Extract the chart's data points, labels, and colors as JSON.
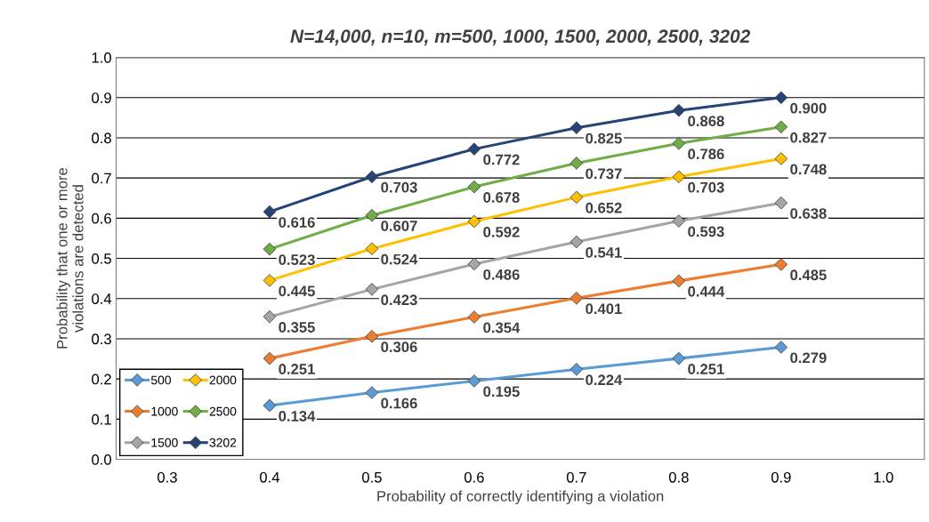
{
  "chart_data": {
    "type": "line",
    "title": "N=14,000, n=10, m=500, 1000, 1500, 2000, 2500, 3202",
    "xlabel": "Probability of correctly identifying a violation",
    "ylabel": "Probability that one or more\nviolations are detected",
    "x": [
      0.4,
      0.5,
      0.6,
      0.7,
      0.8,
      0.9
    ],
    "series": [
      {
        "name": "500",
        "color": "#5b9bd5",
        "values": [
          0.134,
          0.166,
          0.195,
          0.224,
          0.251,
          0.279
        ],
        "value_labels": [
          "0.134",
          "0.166",
          "0.195",
          "0.224",
          "0.251",
          "0.279"
        ]
      },
      {
        "name": "1000",
        "color": "#ed7d31",
        "values": [
          0.251,
          0.306,
          0.354,
          0.401,
          0.444,
          0.485
        ],
        "value_labels": [
          "0.251",
          "0.306",
          "0.354",
          "0.401",
          "0.444",
          "0.485"
        ]
      },
      {
        "name": "1500",
        "color": "#a5a5a5",
        "values": [
          0.355,
          0.423,
          0.486,
          0.541,
          0.593,
          0.638
        ],
        "value_labels": [
          "0.355",
          "0.423",
          "0.486",
          "0.541",
          "0.593",
          "0.638"
        ]
      },
      {
        "name": "2000",
        "color": "#ffc000",
        "values": [
          0.445,
          0.524,
          0.592,
          0.652,
          0.703,
          0.748
        ],
        "value_labels": [
          "0.445",
          "0.524",
          "0.592",
          "0.652",
          "0.703",
          "0.748"
        ]
      },
      {
        "name": "2500",
        "color": "#70ad47",
        "values": [
          0.523,
          0.607,
          0.678,
          0.737,
          0.786,
          0.827
        ],
        "value_labels": [
          "0.523",
          "0.607",
          "0.678",
          "0.737",
          "0.786",
          "0.827"
        ]
      },
      {
        "name": "3202",
        "color": "#264478",
        "values": [
          0.616,
          0.703,
          0.772,
          0.825,
          0.868,
          0.9
        ],
        "value_labels": [
          "0.616",
          "0.703",
          "0.772",
          "0.825",
          "0.868",
          "0.900"
        ]
      }
    ],
    "xlim": [
      0.25,
      1.04
    ],
    "xticks": [
      {
        "value": 0.3,
        "label": "0.3"
      },
      {
        "value": 0.4,
        "label": "0.4"
      },
      {
        "value": 0.5,
        "label": "0.5"
      },
      {
        "value": 0.6,
        "label": "0.6"
      },
      {
        "value": 0.7,
        "label": "0.7"
      },
      {
        "value": 0.8,
        "label": "0.8"
      },
      {
        "value": 0.9,
        "label": "0.9"
      },
      {
        "value": 1.0,
        "label": "1.0"
      }
    ],
    "ylim": [
      0,
      1
    ],
    "yticks": [
      {
        "value": 0,
        "label": "0.0"
      },
      {
        "value": 0.1,
        "label": "0.1"
      },
      {
        "value": 0.2,
        "label": "0.2"
      },
      {
        "value": 0.3,
        "label": "0.3"
      },
      {
        "value": 0.4,
        "label": "0.4"
      },
      {
        "value": 0.5,
        "label": "0.5"
      },
      {
        "value": 0.6,
        "label": "0.6"
      },
      {
        "value": 0.7,
        "label": "0.7"
      },
      {
        "value": 0.8,
        "label": "0.8"
      },
      {
        "value": 0.9,
        "label": "0.9"
      },
      {
        "value": 1.0,
        "label": "1.0"
      }
    ],
    "grid": "y",
    "legend": "bottom left",
    "marker": "diamond",
    "line_style": "solid"
  }
}
